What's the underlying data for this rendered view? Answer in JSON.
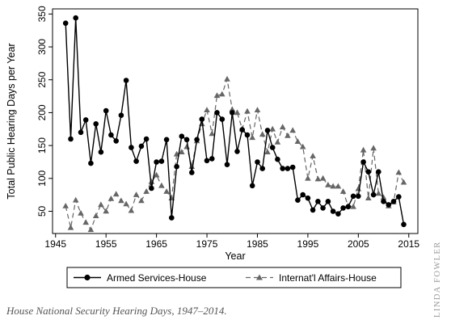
{
  "caption": "House National Security Hearing Days, 1947–2014.",
  "credit": "LINDA FOWLER",
  "chart_data": {
    "type": "line",
    "title": "",
    "xlabel": "Year",
    "ylabel": "Total Public Hearing Days per Year",
    "xlim": [
      1944.4,
      2016.8
    ],
    "ylim": [
      16.2,
      357.8
    ],
    "xticks": [
      1945,
      1955,
      1965,
      1975,
      1985,
      1995,
      2005,
      2015
    ],
    "yticks": [
      50,
      100,
      150,
      200,
      250,
      300,
      350
    ],
    "grid": false,
    "legend_position": "bottom",
    "series": [
      {
        "name": "Armed Services-House",
        "color": "#000000",
        "style": "solid",
        "marker": "circle",
        "x": [
          1947,
          1948,
          1949,
          1950,
          1951,
          1952,
          1953,
          1954,
          1955,
          1956,
          1957,
          1958,
          1959,
          1960,
          1961,
          1962,
          1963,
          1964,
          1965,
          1966,
          1967,
          1968,
          1969,
          1970,
          1971,
          1972,
          1973,
          1974,
          1975,
          1976,
          1977,
          1978,
          1979,
          1980,
          1981,
          1982,
          1983,
          1984,
          1985,
          1986,
          1987,
          1988,
          1989,
          1990,
          1991,
          1992,
          1993,
          1994,
          1995,
          1996,
          1997,
          1998,
          1999,
          2000,
          2001,
          2002,
          2003,
          2004,
          2005,
          2006,
          2007,
          2008,
          2009,
          2010,
          2011,
          2012,
          2013,
          2014
        ],
        "values": [
          336,
          160,
          344,
          170,
          189,
          123,
          183,
          140,
          203,
          166,
          157,
          196,
          249,
          147,
          126,
          149,
          160,
          85,
          125,
          126,
          159,
          40,
          118,
          164,
          159,
          109,
          159,
          190,
          127,
          130,
          200,
          190,
          121,
          200,
          141,
          174,
          166,
          89,
          125,
          115,
          173,
          147,
          129,
          115,
          115,
          117,
          67,
          75,
          70,
          52,
          65,
          55,
          65,
          50,
          46,
          55,
          57,
          73,
          73,
          125,
          110,
          75,
          110,
          65,
          60,
          65,
          72,
          30
        ]
      },
      {
        "name": "Internat'l Affairs-House",
        "color": "#666666",
        "style": "dashed",
        "marker": "triangle",
        "x": [
          1947,
          1948,
          1949,
          1950,
          1951,
          1952,
          1953,
          1954,
          1955,
          1956,
          1957,
          1958,
          1959,
          1960,
          1961,
          1962,
          1963,
          1964,
          1965,
          1966,
          1967,
          1968,
          1969,
          1970,
          1971,
          1972,
          1973,
          1974,
          1975,
          1976,
          1977,
          1978,
          1979,
          1980,
          1981,
          1982,
          1983,
          1984,
          1985,
          1986,
          1987,
          1988,
          1989,
          1990,
          1991,
          1992,
          1993,
          1994,
          1995,
          1996,
          1997,
          1998,
          1999,
          2000,
          2001,
          2002,
          2003,
          2004,
          2005,
          2006,
          2007,
          2008,
          2009,
          2010,
          2011,
          2012,
          2013,
          2014
        ],
        "values": [
          58,
          25,
          67,
          47,
          33,
          22,
          43,
          60,
          50,
          69,
          76,
          66,
          61,
          51,
          75,
          66,
          80,
          95,
          105,
          89,
          80,
          70,
          137,
          140,
          148,
          118,
          157,
          183,
          204,
          168,
          226,
          228,
          251,
          205,
          200,
          175,
          202,
          162,
          204,
          167,
          140,
          175,
          155,
          178,
          165,
          173,
          156,
          148,
          100,
          134,
          99,
          100,
          90,
          88,
          88,
          80,
          58,
          57,
          84,
          143,
          70,
          146,
          77,
          71,
          58,
          64,
          109,
          94
        ]
      }
    ]
  }
}
